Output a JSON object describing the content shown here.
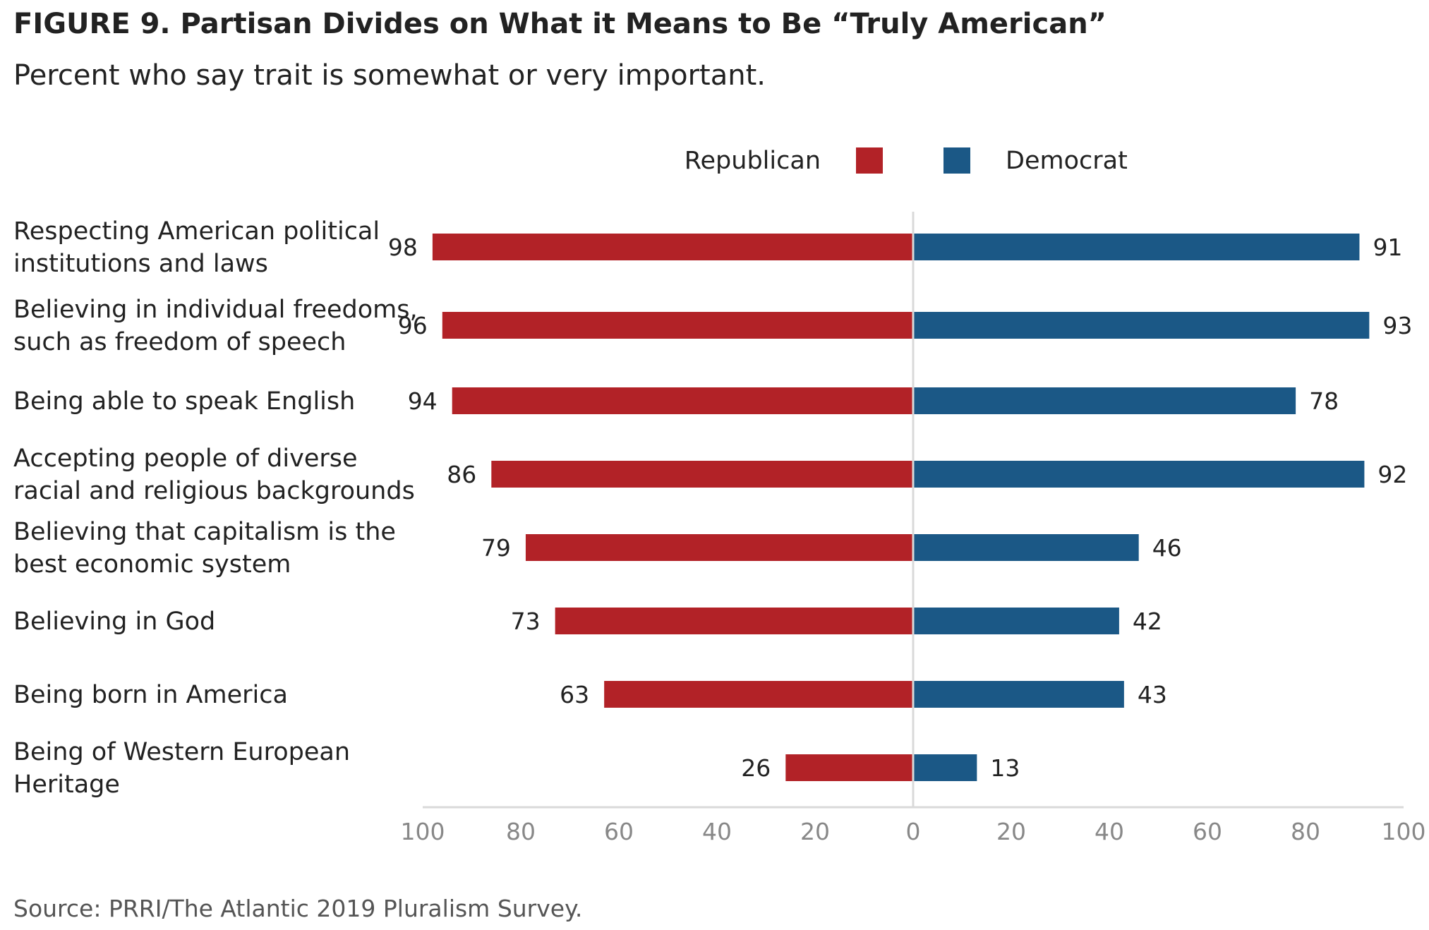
{
  "chart_data": {
    "type": "bar",
    "orientation": "horizontal-diverging",
    "title": "FIGURE 9.  Partisan Divides on What it Means to Be “Truly American”",
    "subtitle": "Percent who say trait is somewhat or very important.",
    "source": "Source: PRRI/The Atlantic 2019 Pluralism Survey.",
    "categories": [
      [
        "Respecting American political",
        "institutions and laws"
      ],
      [
        "Believing in individual freedoms,",
        "such as freedom of speech"
      ],
      [
        "Being able to speak English"
      ],
      [
        "Accepting people of diverse",
        "racial and religious backgrounds"
      ],
      [
        "Believing that capitalism is the",
        "best economic system"
      ],
      [
        "Believing in God"
      ],
      [
        "Being born in America"
      ],
      [
        "Being of Western European",
        "Heritage"
      ]
    ],
    "series": [
      {
        "name": "Republican",
        "color": "#b22227",
        "direction": "left",
        "values": [
          98,
          96,
          94,
          86,
          79,
          73,
          63,
          26
        ]
      },
      {
        "name": "Democrat",
        "color": "#1b5886",
        "direction": "right",
        "values": [
          91,
          93,
          78,
          92,
          46,
          42,
          43,
          13
        ]
      }
    ],
    "xlim": [
      -100,
      100
    ],
    "x_ticks": [
      -100,
      -80,
      -60,
      -40,
      -20,
      0,
      20,
      40,
      60,
      80,
      100
    ],
    "x_tick_labels": [
      "100",
      "80",
      "60",
      "40",
      "20",
      "0",
      "20",
      "40",
      "60",
      "80",
      "100"
    ],
    "legend_position": "top-center",
    "grid": false
  }
}
